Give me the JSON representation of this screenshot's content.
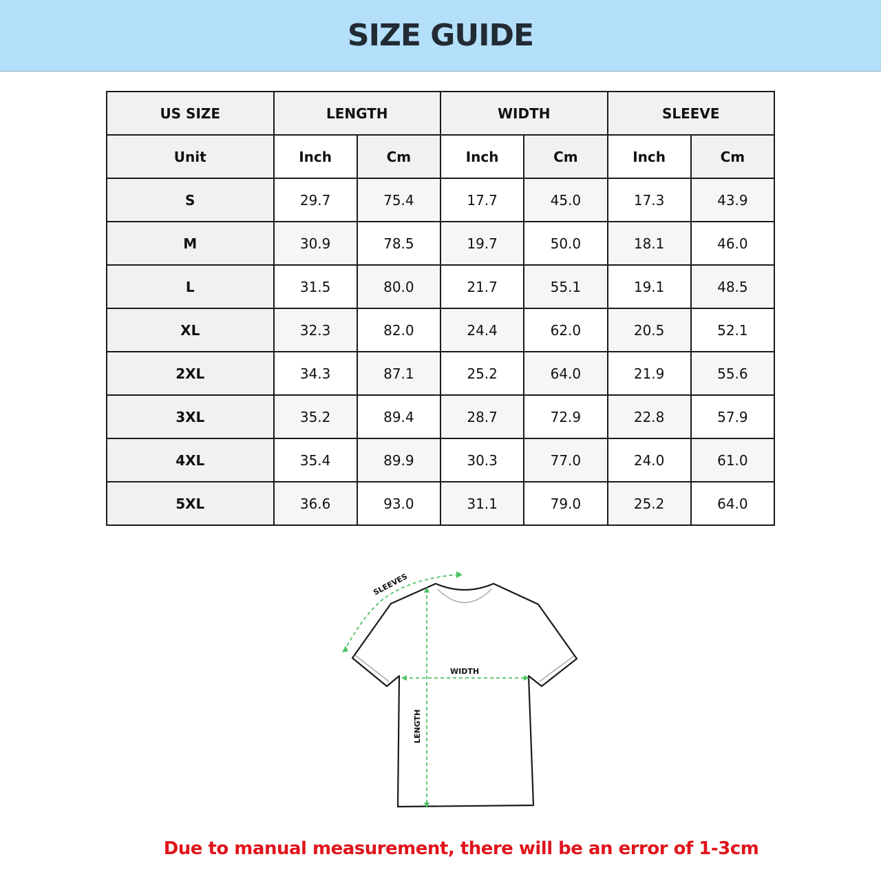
{
  "title": "SIZE GUIDE",
  "table": {
    "group_headers": [
      "US SIZE",
      "LENGTH",
      "WIDTH",
      "SLEEVE"
    ],
    "unit_row": [
      "Unit",
      "Inch",
      "Cm",
      "Inch",
      "Cm",
      "Inch",
      "Cm"
    ],
    "rows": [
      [
        "S",
        "29.7",
        "75.4",
        "17.7",
        "45.0",
        "17.3",
        "43.9"
      ],
      [
        "M",
        "30.9",
        "78.5",
        "19.7",
        "50.0",
        "18.1",
        "46.0"
      ],
      [
        "L",
        "31.5",
        "80.0",
        "21.7",
        "55.1",
        "19.1",
        "48.5"
      ],
      [
        "XL",
        "32.3",
        "82.0",
        "24.4",
        "62.0",
        "20.5",
        "52.1"
      ],
      [
        "2XL",
        "34.3",
        "87.1",
        "25.2",
        "64.0",
        "21.9",
        "55.6"
      ],
      [
        "3XL",
        "35.2",
        "89.4",
        "28.7",
        "72.9",
        "22.8",
        "57.9"
      ],
      [
        "4XL",
        "35.4",
        "89.9",
        "30.3",
        "77.0",
        "24.0",
        "61.0"
      ],
      [
        "5XL",
        "36.6",
        "93.0",
        "31.1",
        "79.0",
        "25.2",
        "64.0"
      ]
    ]
  },
  "diagram": {
    "sleeves_label": "SLEEVES",
    "width_label": "WIDTH",
    "length_label": "LENGTH",
    "arrow_color": "#4cc264"
  },
  "note": "Due to manual measurement, there will be an error of 1-3cm",
  "colors": {
    "banner": "#b3dffb",
    "note": "#e0141c"
  }
}
